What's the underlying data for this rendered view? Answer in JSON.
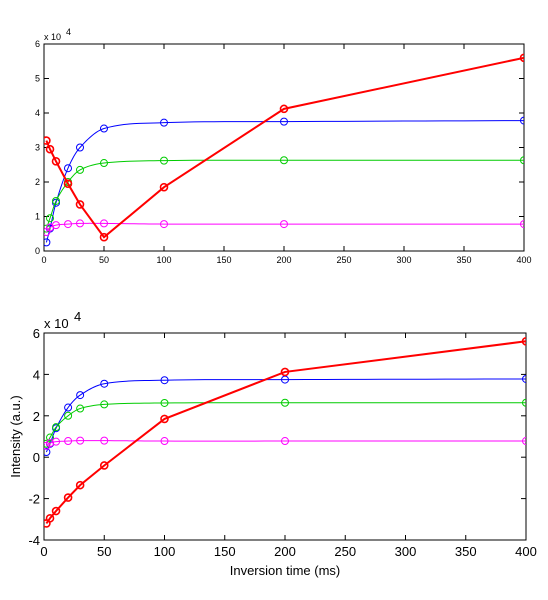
{
  "chart_data": [
    {
      "type": "line",
      "title": "",
      "xlabel": "",
      "ylabel": "",
      "xlim": [
        0,
        400
      ],
      "ylim": [
        0,
        6
      ],
      "xticks": [
        "0",
        "50",
        "100",
        "150",
        "200",
        "250",
        "300",
        "350",
        "400"
      ],
      "yticks": [
        "0",
        "1",
        "2",
        "3",
        "4",
        "5",
        "6"
      ],
      "y_multiplier": {
        "base": "x 10",
        "exponent": "4"
      },
      "grid": false,
      "legend": "none",
      "series": [
        {
          "color": "#0000ff",
          "markers_x": [
            2,
            5,
            10,
            20,
            30,
            50,
            100,
            200,
            400
          ],
          "markers_y": [
            0.25,
            0.65,
            1.4,
            2.4,
            3.0,
            3.55,
            3.72,
            3.75,
            3.78
          ],
          "curve": "saturation"
        },
        {
          "color": "#00cc00",
          "markers_x": [
            2,
            5,
            10,
            20,
            30,
            50,
            100,
            200,
            400
          ],
          "markers_y": [
            0.65,
            0.95,
            1.45,
            2.0,
            2.35,
            2.55,
            2.62,
            2.63,
            2.63
          ],
          "curve": "saturation"
        },
        {
          "color": "#ff00ff",
          "markers_x": [
            2,
            5,
            10,
            20,
            30,
            50,
            100,
            200,
            400
          ],
          "markers_y": [
            0.55,
            0.68,
            0.75,
            0.78,
            0.8,
            0.8,
            0.78,
            0.78,
            0.78
          ],
          "curve": "saturation"
        },
        {
          "color": "#ff0000",
          "markers_x": [
            2,
            5,
            10,
            20,
            30,
            50,
            100,
            200,
            400
          ],
          "markers_y": [
            3.2,
            2.95,
            2.6,
            1.95,
            1.35,
            0.4,
            1.85,
            4.12,
            5.6
          ],
          "curve": "polyline",
          "thick": true
        }
      ]
    },
    {
      "type": "line",
      "title": "",
      "xlabel": "Inversion time (ms)",
      "ylabel": "Intensity (a.u.)",
      "xlim": [
        0,
        400
      ],
      "ylim": [
        -4,
        6
      ],
      "xticks": [
        "0",
        "50",
        "100",
        "150",
        "200",
        "250",
        "300",
        "350",
        "400"
      ],
      "yticks": [
        "-4",
        "-2",
        "0",
        "2",
        "4",
        "6"
      ],
      "y_multiplier": {
        "base": "x 10",
        "exponent": "4"
      },
      "grid": false,
      "legend": "none",
      "series": [
        {
          "color": "#0000ff",
          "markers_x": [
            2,
            5,
            10,
            20,
            30,
            50,
            100,
            200,
            400
          ],
          "markers_y": [
            0.25,
            0.65,
            1.4,
            2.4,
            3.0,
            3.55,
            3.72,
            3.75,
            3.78
          ],
          "curve": "saturation"
        },
        {
          "color": "#00cc00",
          "markers_x": [
            2,
            5,
            10,
            20,
            30,
            50,
            100,
            200,
            400
          ],
          "markers_y": [
            0.65,
            0.95,
            1.45,
            2.0,
            2.35,
            2.55,
            2.62,
            2.63,
            2.63
          ],
          "curve": "saturation"
        },
        {
          "color": "#ff00ff",
          "markers_x": [
            2,
            5,
            10,
            20,
            30,
            50,
            100,
            200,
            400
          ],
          "markers_y": [
            0.55,
            0.68,
            0.75,
            0.78,
            0.8,
            0.8,
            0.78,
            0.78,
            0.78
          ],
          "curve": "saturation"
        },
        {
          "color": "#ff0000",
          "markers_x": [
            2,
            5,
            10,
            20,
            30,
            50,
            100,
            200,
            400
          ],
          "markers_y": [
            -3.2,
            -2.95,
            -2.6,
            -1.95,
            -1.35,
            -0.4,
            1.85,
            4.12,
            5.6
          ],
          "curve": "polyline",
          "thick": true
        }
      ]
    }
  ]
}
